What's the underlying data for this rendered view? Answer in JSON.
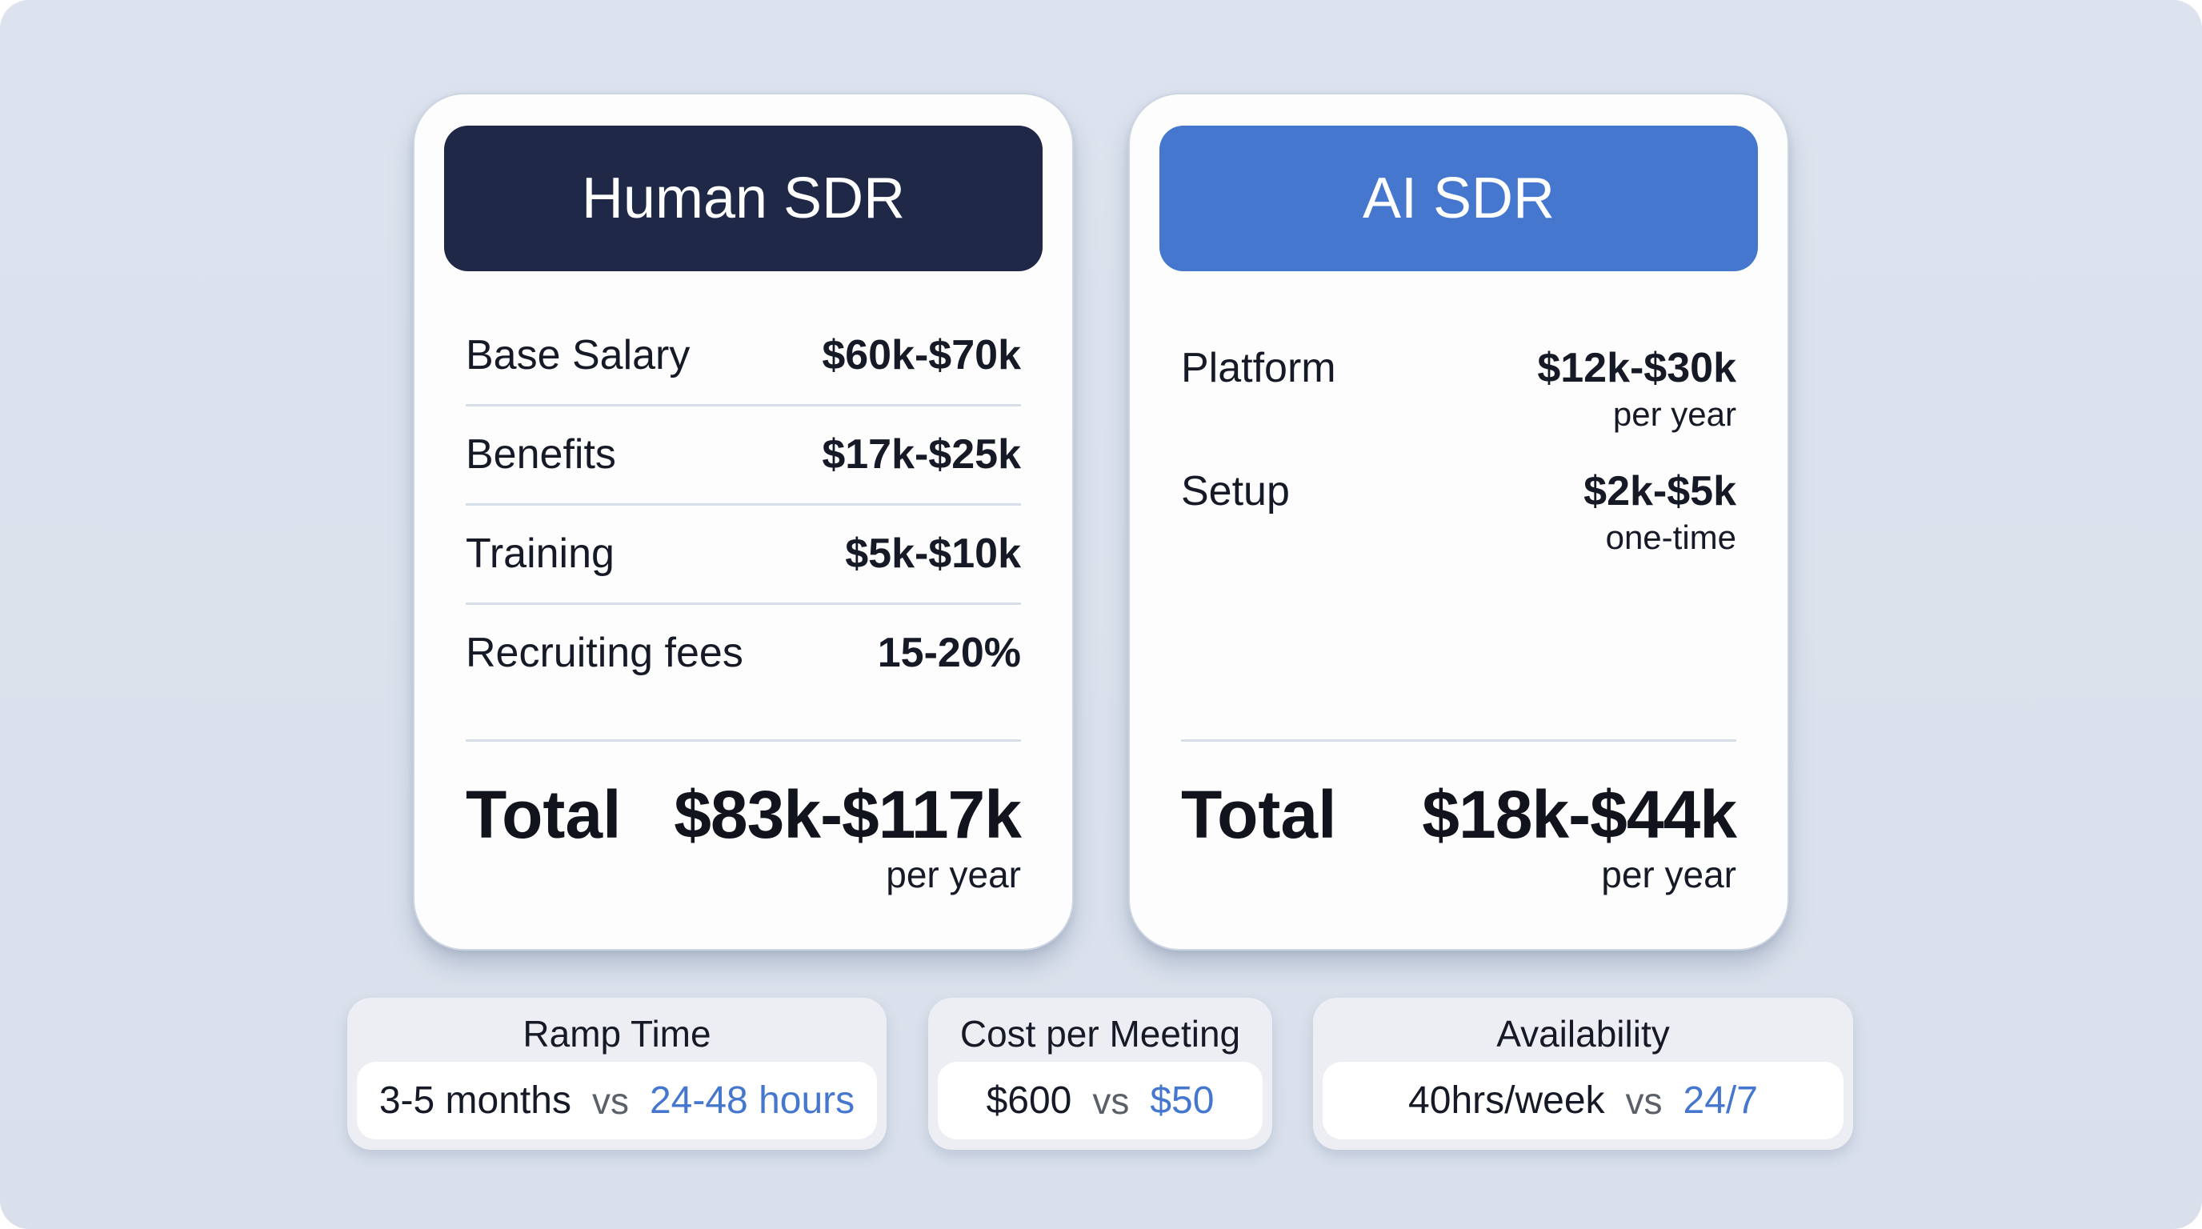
{
  "colors": {
    "background": "#dce2ec",
    "human_header": "#1f2846",
    "ai_header": "#4577cf",
    "ai_accent_text": "#4577cf",
    "text_primary": "#161a26",
    "vs_text": "#5b5f68",
    "divider": "#d6deea"
  },
  "human": {
    "title": "Human SDR",
    "rows": [
      {
        "label": "Base Salary",
        "value": "$60k-$70k"
      },
      {
        "label": "Benefits",
        "value": "$17k-$25k"
      },
      {
        "label": "Training",
        "value": "$5k-$10k"
      },
      {
        "label": "Recruiting fees",
        "value": "15-20%"
      }
    ],
    "total": {
      "label": "Total",
      "value": "$83k-$117k",
      "period": "per year"
    }
  },
  "ai": {
    "title": "AI SDR",
    "rows": [
      {
        "label": "Platform",
        "value": "$12k-$30k",
        "sub": "per year"
      },
      {
        "label": "Setup",
        "value": "$2k-$5k",
        "sub": "one-time"
      }
    ],
    "total": {
      "label": "Total",
      "value": "$18k-$44k",
      "period": "per year"
    }
  },
  "metrics": [
    {
      "title": "Ramp Time",
      "human": "3-5 months",
      "vs": "vs",
      "ai": "24-48 hours"
    },
    {
      "title": "Cost per Meeting",
      "human": "$600",
      "vs": "vs",
      "ai": "$50"
    },
    {
      "title": "Availability",
      "human": "40hrs/week",
      "vs": "vs",
      "ai": "24/7"
    }
  ]
}
